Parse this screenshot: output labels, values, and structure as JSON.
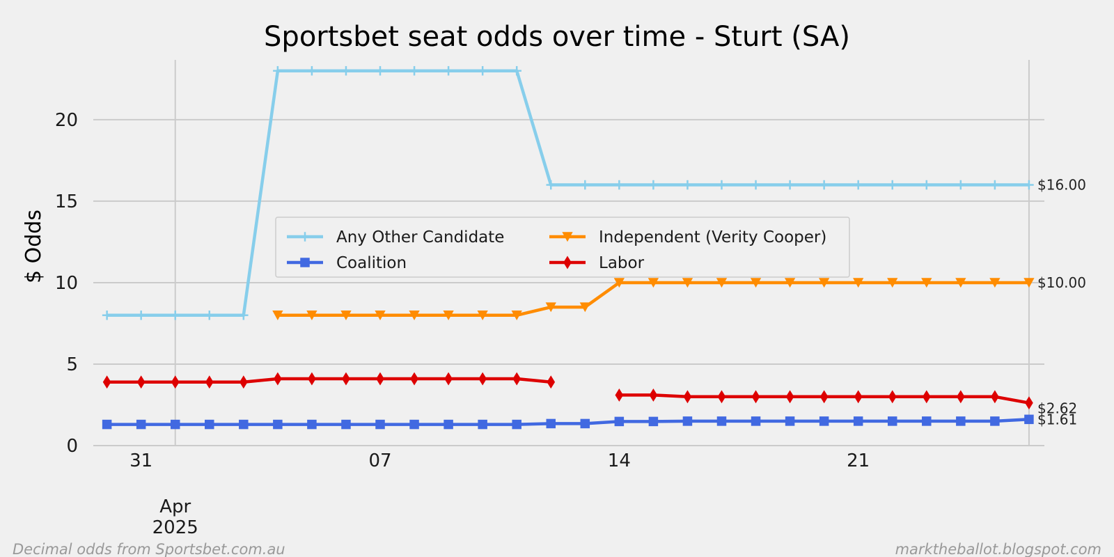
{
  "chart_data": {
    "type": "line",
    "title": "Sportsbet seat odds over time - Sturt  (SA)",
    "ylabel": "$ Odds",
    "xlabel": "",
    "ylim": [
      0,
      23.5
    ],
    "yticks": [
      0,
      5,
      10,
      15,
      20
    ],
    "x_start_date": "2025-03-30",
    "xlim_days": [
      -0.4,
      27.45
    ],
    "xticks": [
      {
        "day": 1,
        "label": "31"
      },
      {
        "day": 8,
        "label": "07"
      },
      {
        "day": 15,
        "label": "14"
      },
      {
        "day": 22,
        "label": "21"
      }
    ],
    "x_month_tick": {
      "day": 2,
      "month": "Apr",
      "year": "2025"
    },
    "grid": true,
    "legend_position": "center",
    "series": [
      {
        "name": "Any Other Candidate",
        "color": "#87ceeb",
        "marker": "plus",
        "points": [
          [
            0,
            8
          ],
          [
            1,
            8
          ],
          [
            2,
            8
          ],
          [
            3,
            8
          ],
          [
            4,
            8
          ],
          [
            5,
            23
          ],
          [
            6,
            23
          ],
          [
            7,
            23
          ],
          [
            8,
            23
          ],
          [
            9,
            23
          ],
          [
            10,
            23
          ],
          [
            11,
            23
          ],
          [
            12,
            23
          ],
          [
            13,
            16
          ],
          [
            14,
            16
          ],
          [
            15,
            16
          ],
          [
            16,
            16
          ],
          [
            17,
            16
          ],
          [
            18,
            16
          ],
          [
            19,
            16
          ],
          [
            20,
            16
          ],
          [
            21,
            16
          ],
          [
            22,
            16
          ],
          [
            23,
            16
          ],
          [
            24,
            16
          ],
          [
            25,
            16
          ],
          [
            26,
            16
          ],
          [
            27,
            16
          ]
        ]
      },
      {
        "name": "Independent (Verity Cooper)",
        "color": "#ff8c00",
        "marker": "triangle-down",
        "points": [
          [
            5,
            8
          ],
          [
            6,
            8
          ],
          [
            7,
            8
          ],
          [
            8,
            8
          ],
          [
            9,
            8
          ],
          [
            10,
            8
          ],
          [
            11,
            8
          ],
          [
            12,
            8
          ],
          [
            13,
            8.5
          ],
          [
            14,
            8.5
          ],
          [
            15,
            10
          ],
          [
            16,
            10
          ],
          [
            17,
            10
          ],
          [
            18,
            10
          ],
          [
            19,
            10
          ],
          [
            20,
            10
          ],
          [
            21,
            10
          ],
          [
            22,
            10
          ],
          [
            23,
            10
          ],
          [
            24,
            10
          ],
          [
            25,
            10
          ],
          [
            26,
            10
          ],
          [
            27,
            10
          ]
        ]
      },
      {
        "name": "Coalition",
        "color": "#4169e1",
        "marker": "square",
        "points": [
          [
            0,
            1.3
          ],
          [
            1,
            1.3
          ],
          [
            2,
            1.3
          ],
          [
            3,
            1.3
          ],
          [
            4,
            1.3
          ],
          [
            5,
            1.3
          ],
          [
            6,
            1.3
          ],
          [
            7,
            1.3
          ],
          [
            8,
            1.3
          ],
          [
            9,
            1.3
          ],
          [
            10,
            1.3
          ],
          [
            11,
            1.3
          ],
          [
            12,
            1.3
          ],
          [
            13,
            1.35
          ],
          [
            14,
            1.35
          ],
          [
            15,
            1.48
          ],
          [
            16,
            1.48
          ],
          [
            17,
            1.5
          ],
          [
            18,
            1.5
          ],
          [
            19,
            1.5
          ],
          [
            20,
            1.5
          ],
          [
            21,
            1.5
          ],
          [
            22,
            1.5
          ],
          [
            23,
            1.5
          ],
          [
            24,
            1.5
          ],
          [
            25,
            1.5
          ],
          [
            26,
            1.5
          ],
          [
            27,
            1.61
          ]
        ]
      },
      {
        "name": "Labor",
        "color": "#dd0000",
        "marker": "diamond",
        "segments": [
          [
            [
              0,
              3.9
            ],
            [
              1,
              3.9
            ],
            [
              2,
              3.9
            ],
            [
              3,
              3.9
            ],
            [
              4,
              3.9
            ],
            [
              5,
              4.1
            ],
            [
              6,
              4.1
            ],
            [
              7,
              4.1
            ],
            [
              8,
              4.1
            ],
            [
              9,
              4.1
            ],
            [
              10,
              4.1
            ],
            [
              11,
              4.1
            ],
            [
              12,
              4.1
            ],
            [
              13,
              3.9
            ]
          ],
          [
            [
              15,
              3.1
            ],
            [
              16,
              3.1
            ],
            [
              17,
              3.0
            ],
            [
              18,
              3.0
            ],
            [
              19,
              3.0
            ],
            [
              20,
              3.0
            ],
            [
              21,
              3.0
            ],
            [
              22,
              3.0
            ],
            [
              23,
              3.0
            ],
            [
              24,
              3.0
            ],
            [
              25,
              3.0
            ],
            [
              26,
              3.0
            ],
            [
              27,
              2.62
            ]
          ]
        ]
      }
    ],
    "end_labels": [
      {
        "value": 16.0,
        "text": "$16.00"
      },
      {
        "value": 10.0,
        "text": "$10.00"
      },
      {
        "value": 2.62,
        "text": "$2.62"
      },
      {
        "value": 1.61,
        "text": "$1.61"
      }
    ],
    "legend_order": [
      "Any Other Candidate",
      "Independent (Verity Cooper)",
      "Coalition",
      "Labor"
    ]
  },
  "footer": {
    "left": "Decimal odds from Sportsbet.com.au",
    "right": "marktheballot.blogspot.com"
  }
}
